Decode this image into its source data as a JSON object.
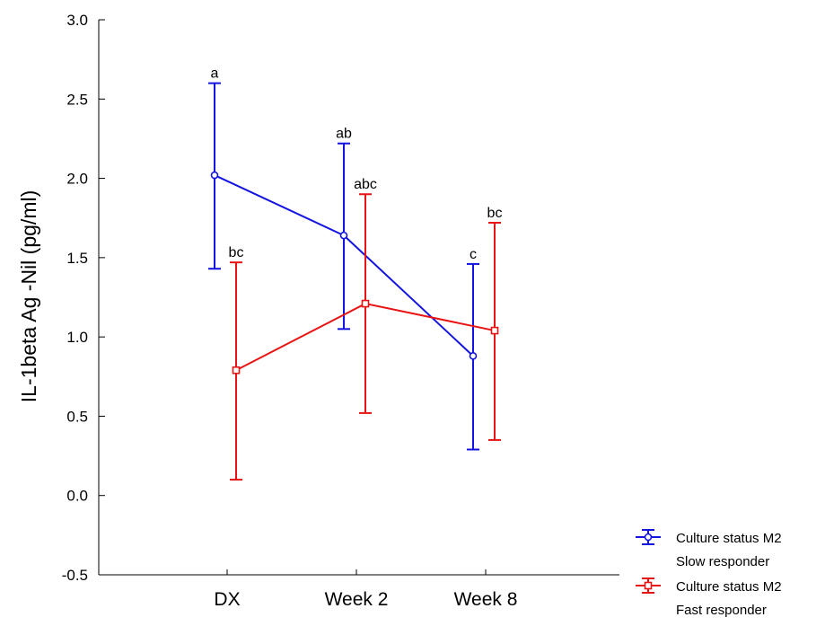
{
  "chart_data": {
    "type": "line",
    "ylabel": "IL-1beta Ag -Nil (pg/ml)",
    "xlabel": "",
    "categories": [
      "DX",
      "Week 2",
      "Week 8"
    ],
    "ylim": [
      -0.5,
      3.0
    ],
    "yticks": [
      "3.0",
      "2.5",
      "2.0",
      "1.5",
      "1.0",
      "0.5",
      "0.0",
      "-0.5"
    ],
    "grid": false,
    "legend_position": "bottom-right",
    "series": [
      {
        "name": "Culture status M2 Slow responder",
        "legend_line1": "Culture status M2",
        "legend_line2": "Slow responder",
        "color": "#1414e0",
        "marker": "circle",
        "values": [
          2.02,
          1.64,
          0.88
        ],
        "lower": [
          1.43,
          1.05,
          0.29
        ],
        "upper": [
          2.6,
          2.22,
          1.46
        ],
        "labels": [
          "a",
          "ab",
          "c"
        ]
      },
      {
        "name": "Culture status M2 Fast responder",
        "legend_line1": "Culture status M2",
        "legend_line2": "Fast responder",
        "color": "#e81414",
        "marker": "square",
        "values": [
          0.79,
          1.21,
          1.04
        ],
        "lower": [
          0.1,
          0.52,
          0.35
        ],
        "upper": [
          1.47,
          1.9,
          1.72
        ],
        "labels": [
          "bc",
          "abc",
          "bc"
        ]
      }
    ]
  }
}
